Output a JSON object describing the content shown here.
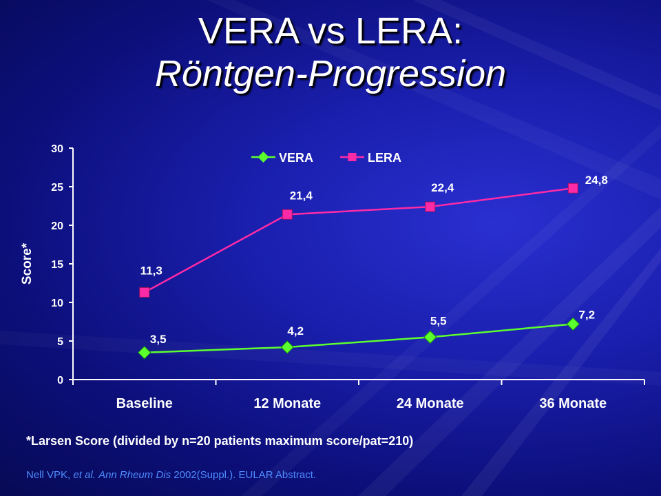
{
  "slide": {
    "title_line1": "VERA vs LERA:",
    "title_line2": "Röntgen-Progression",
    "footnote": "*Larsen Score (divided by n=20 patients maximum score/pat=210)",
    "citation": {
      "authors": "Nell VPK, ",
      "etal": "et al.",
      "journal": "Ann Rheum Dis",
      "rest": " 2002(Suppl.). EULAR Abstract."
    }
  },
  "chart_data": {
    "type": "line",
    "categories": [
      "Baseline",
      "12 Monate",
      "24 Monate",
      "36 Monate"
    ],
    "ylabel": "Score*",
    "xlabel": "",
    "ylim": [
      0,
      30
    ],
    "yticks": [
      0,
      5,
      10,
      15,
      20,
      25,
      30
    ],
    "grid": false,
    "legend_position": "top",
    "series": [
      {
        "name": "VERA",
        "values": [
          3.5,
          4.2,
          5.5,
          7.2
        ],
        "labels": [
          "3,5",
          "4,2",
          "5,5",
          "7,2"
        ],
        "color": "#5cff2e",
        "marker": "diamond"
      },
      {
        "name": "LERA",
        "values": [
          11.3,
          21.4,
          22.4,
          24.8
        ],
        "labels": [
          "11,3",
          "21,4",
          "22,4",
          "24,8"
        ],
        "color": "#ff2aa6",
        "marker": "square"
      }
    ]
  }
}
